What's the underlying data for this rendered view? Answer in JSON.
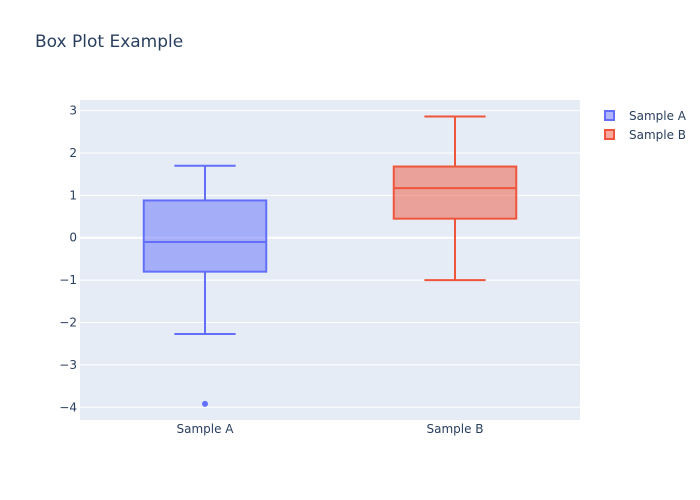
{
  "chart_data": {
    "type": "box",
    "title": "Box Plot Example",
    "xlabel": "",
    "ylabel": "",
    "categories": [
      "Sample A",
      "Sample B"
    ],
    "ylim": [
      -4.3,
      3.25
    ],
    "yticks": [
      3,
      2,
      1,
      0,
      -1,
      -2,
      -3,
      -4
    ],
    "ytick_labels": [
      "3",
      "2",
      "1",
      "0",
      "−1",
      "−2",
      "−3",
      "−4"
    ],
    "grid": true,
    "legend_position": "top-right",
    "series": [
      {
        "name": "Sample A",
        "color": "#636efa",
        "fill": "rgba(99,110,250,0.5)",
        "lowerfence": -2.27,
        "q1": -0.8,
        "median": -0.1,
        "q3": 0.88,
        "upperfence": 1.7,
        "outliers": [
          -3.92
        ]
      },
      {
        "name": "Sample B",
        "color": "#EF553B",
        "fill": "rgba(239,85,59,0.5)",
        "lowerfence": -1.0,
        "q1": 0.45,
        "median": 1.17,
        "q3": 1.68,
        "upperfence": 2.86,
        "outliers": []
      }
    ]
  }
}
